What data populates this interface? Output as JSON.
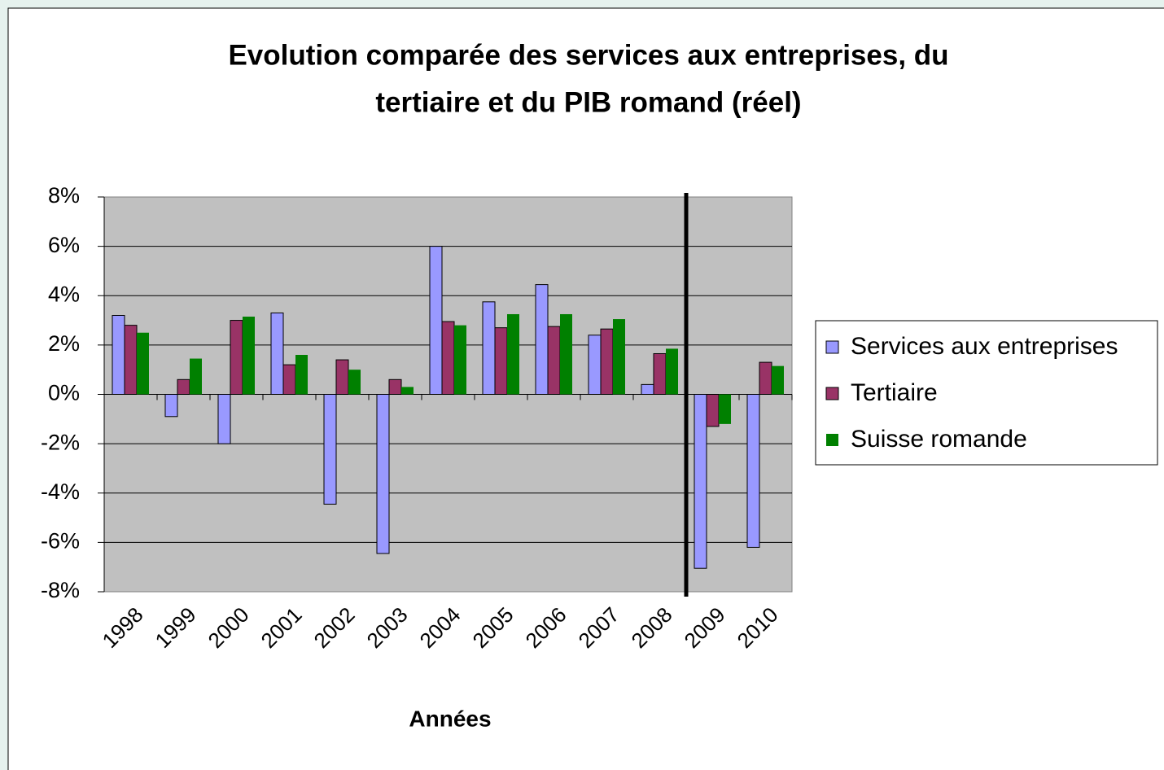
{
  "chart_data": {
    "type": "bar",
    "title": "Evolution comparée des services aux entreprises, du",
    "subtitle": "tertiaire et du PIB romand (réel)",
    "x_label": "Années",
    "categories": [
      "1998",
      "1999",
      "2000",
      "2001",
      "2002",
      "2003",
      "2004",
      "2005",
      "2006",
      "2007",
      "2008",
      "2009",
      "2010"
    ],
    "series": [
      {
        "name": "Services aux entreprises",
        "color": "#9999ff",
        "values": [
          3.2,
          -0.9,
          -2.0,
          3.3,
          -4.45,
          -6.45,
          6.0,
          3.75,
          4.45,
          2.4,
          0.4,
          -7.05,
          -6.2
        ]
      },
      {
        "name": "Tertiaire",
        "color": "#993366",
        "values": [
          2.8,
          0.6,
          3.0,
          1.2,
          1.4,
          0.6,
          2.95,
          2.7,
          2.75,
          2.65,
          1.65,
          -1.3,
          1.3
        ]
      },
      {
        "name": "Suisse romande",
        "color": "#008000",
        "values": [
          2.5,
          1.45,
          3.15,
          1.6,
          1.0,
          0.3,
          2.8,
          3.25,
          3.25,
          3.05,
          1.85,
          -1.2,
          1.15
        ]
      }
    ],
    "ylim": [
      -8,
      8
    ],
    "yticks": [
      {
        "value": -8,
        "label": "-8%"
      },
      {
        "value": -6,
        "label": "-6%"
      },
      {
        "value": -4,
        "label": "-4%"
      },
      {
        "value": -2,
        "label": "-2%"
      },
      {
        "value": 0,
        "label": "0%"
      },
      {
        "value": 2,
        "label": "2%"
      },
      {
        "value": 4,
        "label": "4%"
      },
      {
        "value": 6,
        "label": "6%"
      },
      {
        "value": 8,
        "label": "8%"
      }
    ],
    "grid": true,
    "legend": "right"
  }
}
